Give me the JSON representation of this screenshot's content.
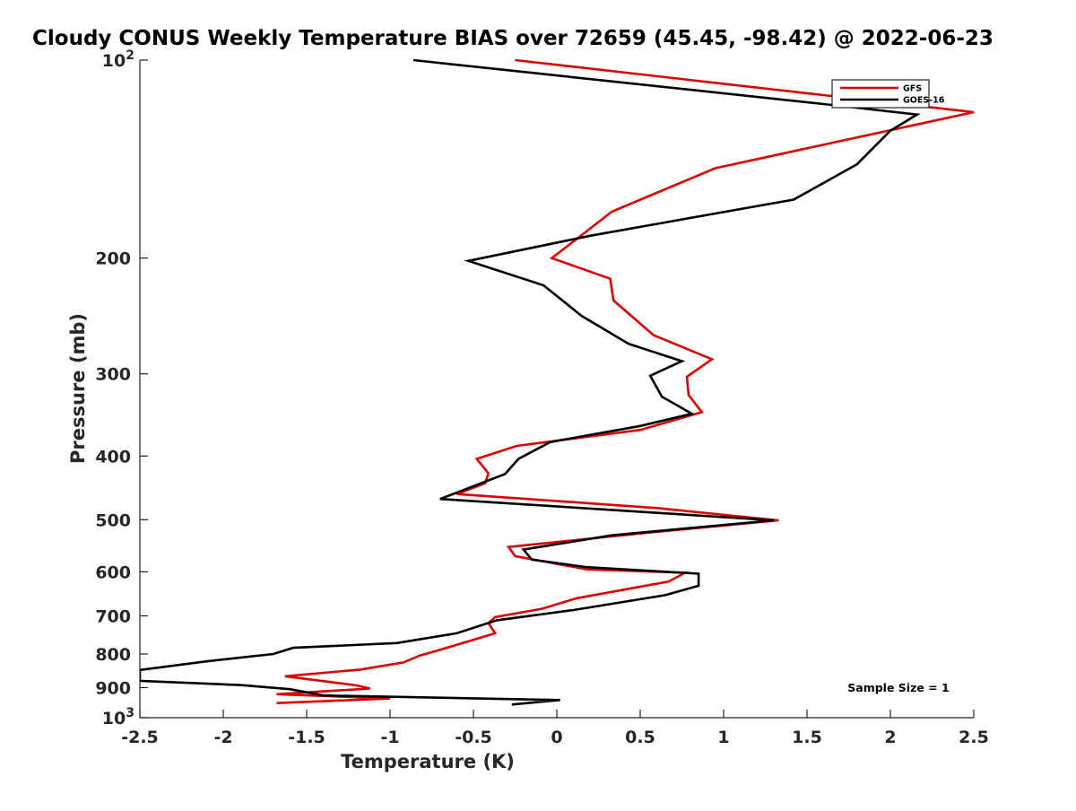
{
  "chart_data": {
    "type": "line",
    "title": "Cloudy CONUS Weekly Temperature BIAS over 72659 (45.45, -98.42) @ 2022-06-23",
    "xlabel": "Temperature (K)",
    "ylabel": "Pressure (mb)",
    "xlim": [
      -2.5,
      2.5
    ],
    "ylim": [
      100,
      1000
    ],
    "y_scale": "log",
    "y_reversed": true,
    "grid": false,
    "legend_position": "top-right",
    "x_ticks": [
      -2.5,
      -2,
      -1.5,
      -1,
      -0.5,
      0,
      0.5,
      1,
      1.5,
      2,
      2.5
    ],
    "x_tick_labels": [
      "-2.5",
      "-2",
      "-1.5",
      "-1",
      "-0.5",
      "0",
      "0.5",
      "1",
      "1.5",
      "2",
      "2.5"
    ],
    "y_ticks": [
      100,
      200,
      300,
      400,
      500,
      600,
      700,
      800,
      900,
      1000
    ],
    "y_tick_labels": [
      {
        "base": "10",
        "exp": "2"
      },
      {
        "base": "200",
        "exp": ""
      },
      {
        "base": "300",
        "exp": ""
      },
      {
        "base": "400",
        "exp": ""
      },
      {
        "base": "500",
        "exp": ""
      },
      {
        "base": "600",
        "exp": ""
      },
      {
        "base": "700",
        "exp": ""
      },
      {
        "base": "800",
        "exp": ""
      },
      {
        "base": "900",
        "exp": ""
      },
      {
        "base": "10",
        "exp": "3"
      }
    ],
    "annotation": "Sample Size = 1",
    "series": [
      {
        "name": "GFS",
        "color": "#dd0000",
        "points": [
          [
            -0.25,
            100
          ],
          [
            2.5,
            120
          ],
          [
            0.95,
            146
          ],
          [
            0.33,
            170
          ],
          [
            0.18,
            182
          ],
          [
            -0.03,
            200
          ],
          [
            0.32,
            215
          ],
          [
            0.34,
            232
          ],
          [
            0.58,
            262
          ],
          [
            0.93,
            285
          ],
          [
            0.78,
            303
          ],
          [
            0.79,
            323
          ],
          [
            0.87,
            343
          ],
          [
            0.5,
            365
          ],
          [
            -0.24,
            386
          ],
          [
            -0.48,
            404
          ],
          [
            -0.41,
            425
          ],
          [
            -0.43,
            440
          ],
          [
            -0.6,
            457
          ],
          [
            0.6,
            480
          ],
          [
            1.33,
            501
          ],
          [
            0.55,
            523
          ],
          [
            -0.29,
            550
          ],
          [
            -0.25,
            568
          ],
          [
            0.18,
            595
          ],
          [
            0.77,
            602
          ],
          [
            0.67,
            621
          ],
          [
            0.12,
            658
          ],
          [
            -0.09,
            683
          ],
          [
            -0.37,
            703
          ],
          [
            -0.41,
            718
          ],
          [
            -0.37,
            744
          ],
          [
            -0.55,
            768
          ],
          [
            -0.75,
            795
          ],
          [
            -0.82,
            804
          ],
          [
            -0.92,
            824
          ],
          [
            -1.18,
            845
          ],
          [
            -1.63,
            865
          ],
          [
            -1.2,
            893
          ],
          [
            -1.12,
            903
          ],
          [
            -1.68,
            921
          ],
          [
            -1.0,
            935
          ],
          [
            -1.68,
            950
          ]
        ]
      },
      {
        "name": "GOES-16",
        "color": "#000000",
        "points": [
          [
            -0.86,
            100
          ],
          [
            1.65,
            117
          ],
          [
            2.16,
            121
          ],
          [
            2.0,
            128
          ],
          [
            1.8,
            144
          ],
          [
            1.42,
            163
          ],
          [
            0.2,
            185
          ],
          [
            -0.53,
            202
          ],
          [
            -0.08,
            220
          ],
          [
            0.15,
            245
          ],
          [
            0.43,
            270
          ],
          [
            0.75,
            287
          ],
          [
            0.56,
            302
          ],
          [
            0.63,
            325
          ],
          [
            0.81,
            345
          ],
          [
            0.5,
            360
          ],
          [
            -0.04,
            381
          ],
          [
            -0.23,
            404
          ],
          [
            -0.31,
            426
          ],
          [
            -0.7,
            465
          ],
          [
            1.3,
            501
          ],
          [
            0.33,
            528
          ],
          [
            -0.2,
            555
          ],
          [
            -0.15,
            575
          ],
          [
            0.17,
            590
          ],
          [
            0.85,
            604
          ],
          [
            0.85,
            630
          ],
          [
            0.65,
            651
          ],
          [
            0.1,
            686
          ],
          [
            -0.36,
            711
          ],
          [
            -0.6,
            744
          ],
          [
            -0.96,
            770
          ],
          [
            -1.58,
            783
          ],
          [
            -1.7,
            800
          ],
          [
            -2.1,
            821
          ],
          [
            -2.5,
            846
          ],
          [
            -2.5,
            879
          ],
          [
            -1.9,
            892
          ],
          [
            -1.6,
            905
          ],
          [
            -1.4,
            925
          ],
          [
            0.02,
            940
          ],
          [
            -0.27,
            955
          ]
        ]
      }
    ]
  }
}
